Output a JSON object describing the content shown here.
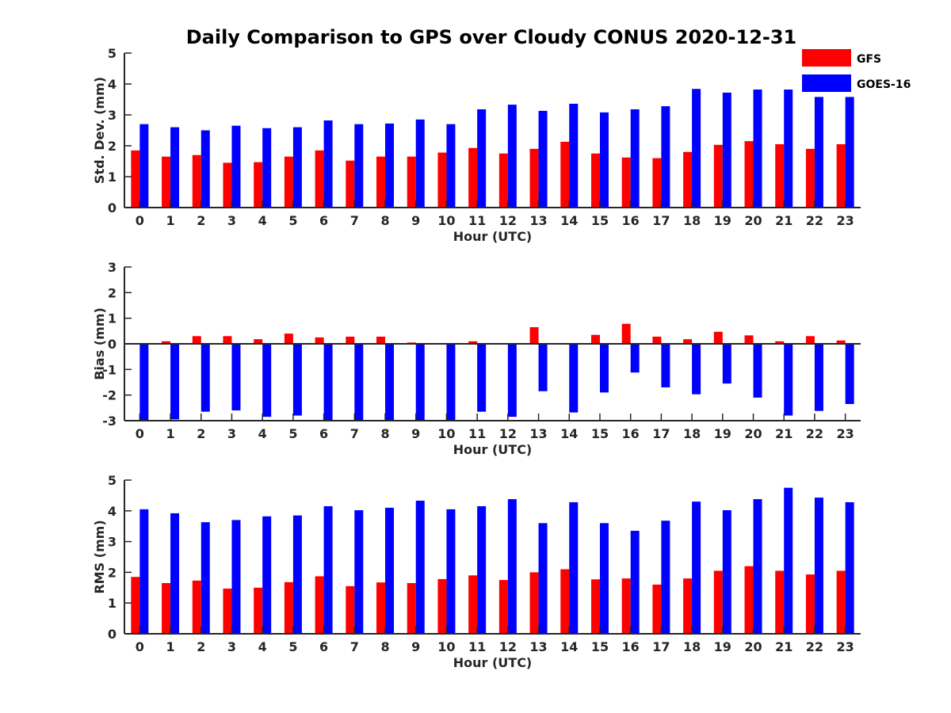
{
  "title": "Daily Comparison to GPS over Cloudy CONUS 2020-12-31",
  "legend": [
    {
      "label": "GFS",
      "color": "#ff0000"
    },
    {
      "label": "GOES-16",
      "color": "#0000ff"
    }
  ],
  "chart_data": [
    {
      "type": "bar",
      "categories": [
        "0",
        "1",
        "2",
        "3",
        "4",
        "5",
        "6",
        "7",
        "8",
        "9",
        "10",
        "11",
        "12",
        "13",
        "14",
        "15",
        "16",
        "17",
        "18",
        "19",
        "20",
        "21",
        "22",
        "23"
      ],
      "xlabel": "Hour (UTC)",
      "ylabel": "Std. Dev. (mm)",
      "ylim": [
        0,
        5
      ],
      "yticks": [
        0,
        1,
        2,
        3,
        4,
        5
      ],
      "series": [
        {
          "name": "GFS",
          "color": "#ff0000",
          "values": [
            1.85,
            1.65,
            1.7,
            1.45,
            1.47,
            1.65,
            1.85,
            1.52,
            1.65,
            1.65,
            1.78,
            1.93,
            1.75,
            1.9,
            2.13,
            1.75,
            1.62,
            1.6,
            1.8,
            2.03,
            2.15,
            2.05,
            1.9,
            2.05
          ]
        },
        {
          "name": "GOES-16",
          "color": "#0000ff",
          "values": [
            2.7,
            2.6,
            2.5,
            2.65,
            2.57,
            2.6,
            2.82,
            2.7,
            2.72,
            2.85,
            2.7,
            3.18,
            3.33,
            3.13,
            3.36,
            3.08,
            3.18,
            3.28,
            3.84,
            3.72,
            3.82,
            3.82,
            3.58,
            3.58
          ]
        }
      ]
    },
    {
      "type": "bar",
      "categories": [
        "0",
        "1",
        "2",
        "3",
        "4",
        "5",
        "6",
        "7",
        "8",
        "9",
        "10",
        "11",
        "12",
        "13",
        "14",
        "15",
        "16",
        "17",
        "18",
        "19",
        "20",
        "21",
        "22",
        "23"
      ],
      "xlabel": "Hour (UTC)",
      "ylabel": "Bias (mm)",
      "ylim": [
        -3,
        3
      ],
      "yticks": [
        -3,
        -2,
        -1,
        0,
        1,
        2,
        3
      ],
      "series": [
        {
          "name": "GFS",
          "color": "#ff0000",
          "values": [
            0.0,
            0.1,
            0.3,
            0.3,
            0.18,
            0.4,
            0.25,
            0.28,
            0.28,
            0.05,
            0.0,
            0.1,
            0.03,
            0.65,
            -0.03,
            0.35,
            0.78,
            0.28,
            0.18,
            0.47,
            0.33,
            0.1,
            0.3,
            0.13
          ]
        },
        {
          "name": "GOES-16",
          "color": "#0000ff",
          "values": [
            -3.0,
            -2.95,
            -2.65,
            -2.6,
            -2.85,
            -2.8,
            -3.0,
            -3.0,
            -3.0,
            -3.0,
            -3.0,
            -2.65,
            -2.85,
            -1.85,
            -2.68,
            -1.9,
            -1.12,
            -1.7,
            -1.97,
            -1.55,
            -2.1,
            -2.8,
            -2.62,
            -2.35
          ]
        }
      ]
    },
    {
      "type": "bar",
      "categories": [
        "0",
        "1",
        "2",
        "3",
        "4",
        "5",
        "6",
        "7",
        "8",
        "9",
        "10",
        "11",
        "12",
        "13",
        "14",
        "15",
        "16",
        "17",
        "18",
        "19",
        "20",
        "21",
        "22",
        "23"
      ],
      "xlabel": "Hour (UTC)",
      "ylabel": "RMS (mm)",
      "ylim": [
        0,
        5
      ],
      "yticks": [
        0,
        1,
        2,
        3,
        4,
        5
      ],
      "series": [
        {
          "name": "GFS",
          "color": "#ff0000",
          "values": [
            1.85,
            1.65,
            1.73,
            1.47,
            1.5,
            1.68,
            1.87,
            1.55,
            1.67,
            1.65,
            1.78,
            1.9,
            1.75,
            2.0,
            2.1,
            1.77,
            1.8,
            1.6,
            1.8,
            2.05,
            2.2,
            2.05,
            1.93,
            2.05
          ]
        },
        {
          "name": "GOES-16",
          "color": "#0000ff",
          "values": [
            4.05,
            3.92,
            3.63,
            3.7,
            3.82,
            3.85,
            4.15,
            4.02,
            4.1,
            4.33,
            4.05,
            4.15,
            4.38,
            3.6,
            4.28,
            3.6,
            3.35,
            3.68,
            4.3,
            4.02,
            4.38,
            4.75,
            4.43,
            4.28
          ]
        }
      ]
    }
  ]
}
